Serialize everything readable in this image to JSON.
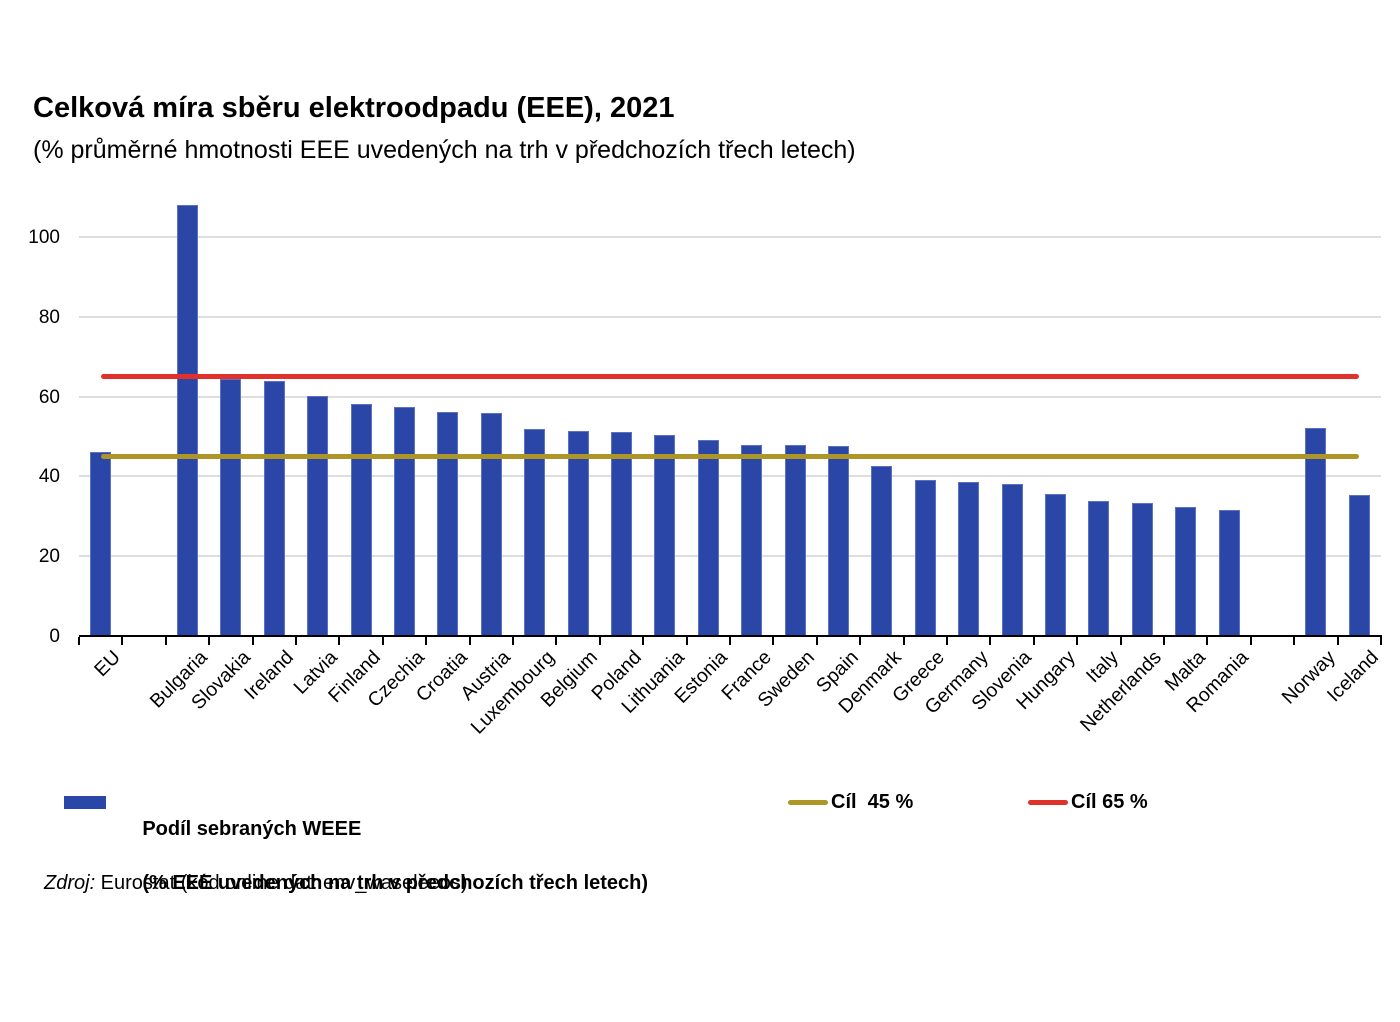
{
  "chart_data": {
    "type": "bar",
    "title": "Celková míra sběru elektroodpadu (EEE), 2021",
    "subtitle": "(% průměrné hmotnosti EEE uvedených na trh v předchozích třech letech)",
    "categories": [
      "EU",
      "",
      "Bulgaria",
      "Slovakia",
      "Ireland",
      "Latvia",
      "Finland",
      "Czechia",
      "Croatia",
      "Austria",
      "Luxembourg",
      "Belgium",
      "Poland",
      "Lithuania",
      "Estonia",
      "France",
      "Sweden",
      "Spain",
      "Denmark",
      "Greece",
      "Germany",
      "Slovenia",
      "Hungary",
      "Italy",
      "Netherlands",
      "Malta",
      "Romania",
      "",
      "Norway",
      "Iceland"
    ],
    "values": [
      46.2,
      null,
      108.1,
      64.5,
      63.8,
      60.1,
      58.2,
      57.4,
      56.1,
      55.8,
      51.8,
      51.4,
      51.0,
      50.4,
      49.0,
      47.9,
      47.9,
      47.7,
      42.6,
      39.1,
      38.6,
      38.1,
      35.6,
      33.8,
      33.4,
      32.4,
      31.7,
      null,
      52.0,
      35.4
    ],
    "ylim": [
      0,
      110.5
    ],
    "yticks": [
      0,
      20,
      40,
      60,
      80,
      100
    ],
    "grid": "horizontal",
    "legend_position": "bottom",
    "xlabel": "",
    "ylabel": "",
    "colors": {
      "bar": "#2A47A8",
      "bar_border": "#5E70C0",
      "gridline": "#DEDEDE",
      "axis": "#000000",
      "target_45": "#AE9528",
      "target_65": "#E1312B"
    },
    "target_lines": [
      {
        "value": 45,
        "color": "#AE9528",
        "legend_label": "Cíl  45 %"
      },
      {
        "value": 65,
        "color": "#E1312B",
        "legend_label": "Cíl 65 %"
      }
    ],
    "series_legend": {
      "line1": "Podíl sebraných WEEE",
      "line2": "(% EEE uvedených na trh v předchozích třech letech)"
    },
    "source": {
      "prefix": "Zdroj:",
      "text": " Eurostat (kód online dat: env_waseleeos)"
    }
  }
}
